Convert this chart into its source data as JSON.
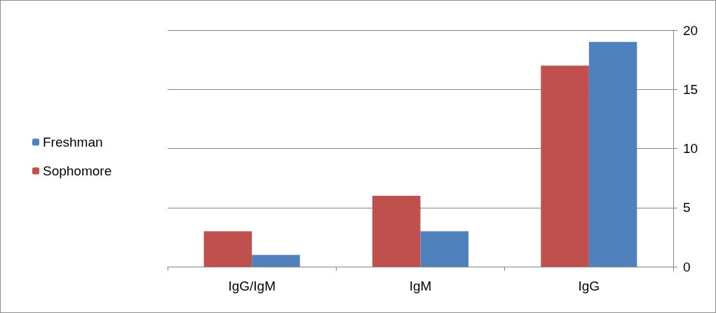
{
  "chart_data": {
    "type": "bar",
    "categories": [
      "IgG/IgM",
      "IgM",
      "IgG"
    ],
    "series": [
      {
        "name": "Sophomore",
        "color": "#c0504d",
        "values": [
          3,
          6,
          17
        ]
      },
      {
        "name": "Freshman",
        "color": "#4f81bd",
        "values": [
          1,
          3,
          19
        ]
      }
    ],
    "ylim": [
      0,
      20
    ],
    "yticks": [
      0,
      5,
      10,
      15,
      20
    ],
    "grid": "y",
    "legend": "left"
  }
}
